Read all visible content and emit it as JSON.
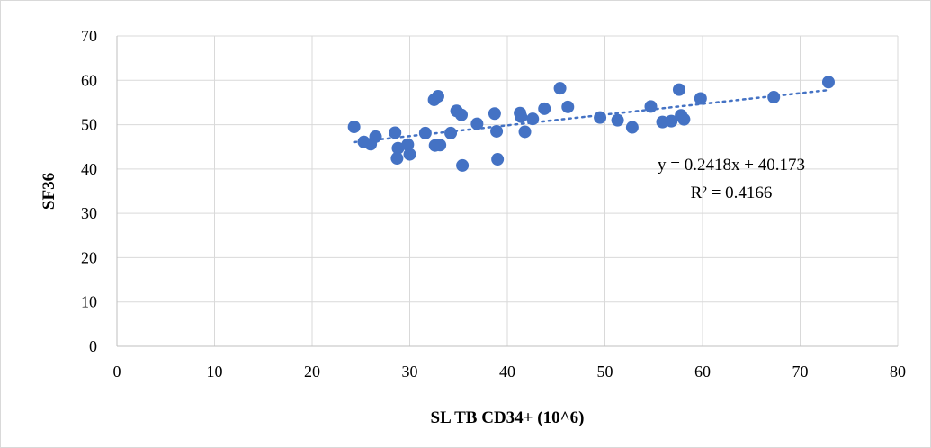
{
  "chart_data": {
    "type": "scatter",
    "xlabel": "SL TB CD34+ (10^6)",
    "ylabel": "SF36",
    "xlim": [
      0,
      80
    ],
    "ylim": [
      0,
      70
    ],
    "x_ticks": [
      0,
      10,
      20,
      30,
      40,
      50,
      60,
      70,
      80
    ],
    "y_ticks": [
      0,
      10,
      20,
      30,
      40,
      50,
      60,
      70
    ],
    "grid": true,
    "marker_color": "#4472C4",
    "trendline": {
      "type": "linear",
      "slope": 0.2418,
      "intercept": 40.173,
      "x_range": [
        24.3,
        72.9
      ],
      "style": "dotted",
      "equation_label": "y = 0.2418x + 40.173",
      "r2_label": "R² = 0.4166"
    },
    "series": [
      {
        "points": [
          [
            24.3,
            49.5
          ],
          [
            25.3,
            46.1
          ],
          [
            26.0,
            45.6
          ],
          [
            26.5,
            47.3
          ],
          [
            28.5,
            48.2
          ],
          [
            28.8,
            44.7
          ],
          [
            28.7,
            42.4
          ],
          [
            29.8,
            45.5
          ],
          [
            30.0,
            43.3
          ],
          [
            31.6,
            48.1
          ],
          [
            32.5,
            55.6
          ],
          [
            32.9,
            56.4
          ],
          [
            32.6,
            45.3
          ],
          [
            33.1,
            45.4
          ],
          [
            34.2,
            48.1
          ],
          [
            34.8,
            53.1
          ],
          [
            35.3,
            52.2
          ],
          [
            35.4,
            40.8
          ],
          [
            36.9,
            50.2
          ],
          [
            38.7,
            52.5
          ],
          [
            38.9,
            48.5
          ],
          [
            39.0,
            42.2
          ],
          [
            41.3,
            52.6
          ],
          [
            41.4,
            51.8
          ],
          [
            41.8,
            48.4
          ],
          [
            42.6,
            51.3
          ],
          [
            43.8,
            53.6
          ],
          [
            45.4,
            58.2
          ],
          [
            46.2,
            54.0
          ],
          [
            49.5,
            51.6
          ],
          [
            51.3,
            51.0
          ],
          [
            52.8,
            49.4
          ],
          [
            54.7,
            54.1
          ],
          [
            55.9,
            50.6
          ],
          [
            56.8,
            50.8
          ],
          [
            57.6,
            57.9
          ],
          [
            57.8,
            52.1
          ],
          [
            58.1,
            51.2
          ],
          [
            59.8,
            55.9
          ],
          [
            67.3,
            56.2
          ],
          [
            72.9,
            59.6
          ]
        ]
      }
    ]
  }
}
